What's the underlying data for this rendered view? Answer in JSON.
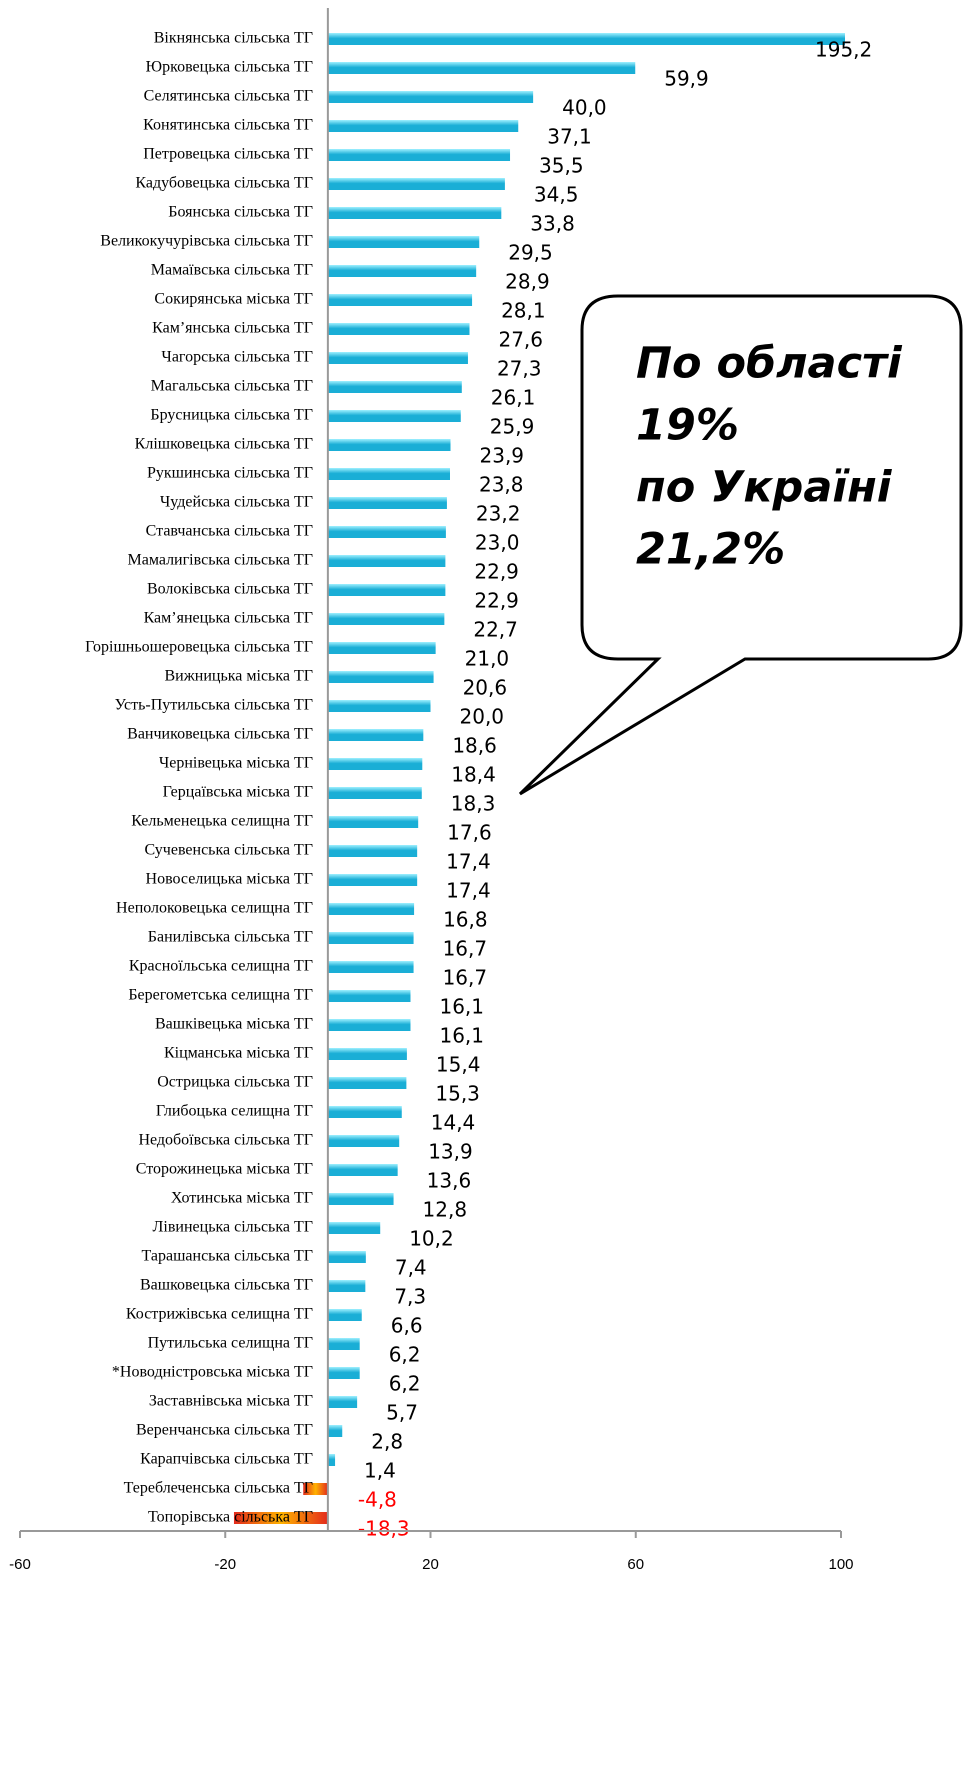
{
  "chart_data": {
    "type": "bar",
    "orientation": "horizontal",
    "categories": [
      "Вікнянська сільська ТГ",
      "Юрковецька сільська ТГ",
      "Селятинська сільська ТГ",
      "Конятинська сільська ТГ",
      "Петровецька сільська ТГ",
      "Кадубовецька сільська ТГ",
      "Боянська сільська ТГ",
      "Великокучурівська сільська ТГ",
      "Мамаївська сільська ТГ",
      "Сокирянська міська ТГ",
      "Кам’янська сільська ТГ",
      "Чагорська сільська ТГ",
      "Магальська сільська ТГ",
      "Брусницька сільська ТГ",
      "Клішковецька сільська ТГ",
      "Рукшинська сільська ТГ",
      "Чудейська сільська ТГ",
      "Ставчанська сільська ТГ",
      "Мамалигівська сільська ТГ",
      "Волоківська сільська ТГ",
      "Кам’янецька сільська ТГ",
      "Горішньошеровецька сільська ТГ",
      "Вижницька міська ТГ",
      "Усть-Путильська сільська ТГ",
      "Ванчиковецька сільська ТГ",
      "Чернівецька міська ТГ",
      "Герцаївська міська ТГ",
      "Кельменецька селищна ТГ",
      "Сучевенська сільська ТГ",
      "Новоселицька міська ТГ",
      "Неполоковецька селищна ТГ",
      "Банилівська сільська ТГ",
      "Красноїльська селищна ТГ",
      "Берегометська селищна ТГ",
      "Вашківецька міська ТГ",
      "Кіцманська міська ТГ",
      "Острицька сільська ТГ",
      "Глибоцька селищна ТГ",
      "Недобоївська сільська ТГ",
      "Сторожинецька міська ТГ",
      "Хотинська міська ТГ",
      "Лівинецька сільська ТГ",
      "Тарашанська сільська ТГ",
      "Вашковецька сільська ТГ",
      "Кострижівська селищна ТГ",
      "Путильська селищна ТГ",
      "*Новодністровська міська ТГ",
      "Заставнівська міська ТГ",
      "Веренчанська сільська ТГ",
      "Карапчівська сільська ТГ",
      "Тереблеченська сільська ТГ",
      "Топорівська сільська ТГ"
    ],
    "values": [
      195.2,
      59.9,
      40.0,
      37.1,
      35.5,
      34.5,
      33.8,
      29.5,
      28.9,
      28.1,
      27.6,
      27.3,
      26.1,
      25.9,
      23.9,
      23.8,
      23.2,
      23.0,
      22.9,
      22.9,
      22.7,
      21.0,
      20.6,
      20.0,
      18.6,
      18.4,
      18.3,
      17.6,
      17.4,
      17.4,
      16.8,
      16.7,
      16.7,
      16.1,
      16.1,
      15.4,
      15.3,
      14.4,
      13.9,
      13.6,
      12.8,
      10.2,
      7.4,
      7.3,
      6.6,
      6.2,
      6.2,
      5.7,
      2.8,
      1.4,
      -4.8,
      -18.3
    ],
    "value_labels": [
      "195,2",
      "59,9",
      "40,0",
      "37,1",
      "35,5",
      "34,5",
      "33,8",
      "29,5",
      "28,9",
      "28,1",
      "27,6",
      "27,3",
      "26,1",
      "25,9",
      "23,9",
      "23,8",
      "23,2",
      "23,0",
      "22,9",
      "22,9",
      "22,7",
      "21,0",
      "20,6",
      "20,0",
      "18,6",
      "18,4",
      "18,3",
      "17,6",
      "17,4",
      "17,4",
      "16,8",
      "16,7",
      "16,7",
      "16,1",
      "16,1",
      "15,4",
      "15,3",
      "14,4",
      "13,9",
      "13,6",
      "12,8",
      "10,2",
      "7,4",
      "7,3",
      "6,6",
      "6,2",
      "6,2",
      "5,7",
      "2,8",
      "1,4",
      "-4,8",
      "-18,3"
    ],
    "color": "#1aaed6",
    "negative_color": "#e32a1c",
    "negative_label_color": "#ff0000",
    "xlim": [
      -60,
      100
    ],
    "xticks": [
      -60,
      -20,
      20,
      60,
      100
    ],
    "annotation": [
      "По області",
      "19%",
      "по Україні",
      "21,2%"
    ]
  }
}
